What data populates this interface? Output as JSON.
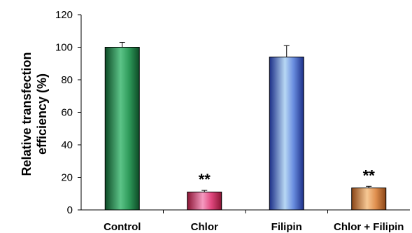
{
  "chart_data": {
    "type": "bar",
    "title": "",
    "xlabel": "",
    "ylabel": "Relative transfection efficiency (%)",
    "ylabel_lines": [
      "Relative transfection",
      "efficiency (%)"
    ],
    "ylim": [
      0,
      120
    ],
    "yticks": [
      0,
      20,
      40,
      60,
      80,
      100,
      120
    ],
    "categories": [
      "Control",
      "Chlor",
      "Filipin",
      "Chlor + Filipin"
    ],
    "values": [
      100,
      11,
      94,
      13.5
    ],
    "errors": [
      3,
      1,
      7,
      1
    ],
    "significance": [
      "",
      "**",
      "",
      "**"
    ],
    "bar_colors": [
      {
        "dark": "#0d4a26",
        "mid": "#2e9a5a",
        "light": "#5cc488"
      },
      {
        "dark": "#8a1434",
        "mid": "#e0487e",
        "light": "#f59ac0"
      },
      {
        "dark": "#1c2f88",
        "mid": "#6a8ee0",
        "light": "#b8d8f4"
      },
      {
        "dark": "#8a4516",
        "mid": "#e09050",
        "light": "#f6c894"
      }
    ],
    "grid": false,
    "legend": "none"
  }
}
